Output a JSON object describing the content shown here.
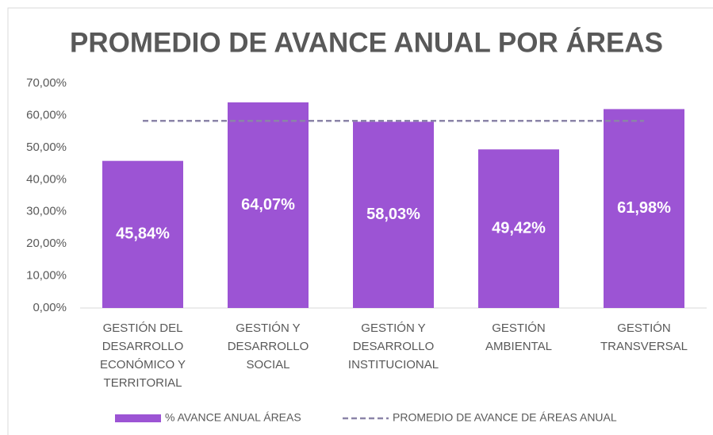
{
  "chart_data": {
    "type": "bar",
    "title": "PROMEDIO DE AVANCE ANUAL POR ÁREAS",
    "categories": [
      "GESTIÓN DEL DESARROLLO ECONÓMICO Y TERRITORIAL",
      "GESTIÓN Y DESARROLLO SOCIAL",
      "GESTIÓN Y DESARROLLO INSTITUCIONAL",
      "GESTIÓN AMBIENTAL",
      "GESTIÓN TRANSVERSAL"
    ],
    "series": [
      {
        "name": "% AVANCE ANUAL ÁREAS",
        "type": "bar",
        "color": "#9c54d4",
        "values": [
          45.84,
          64.07,
          58.03,
          49.42,
          61.98
        ],
        "value_labels": [
          "45,84%",
          "64,07%",
          "58,03%",
          "49,42%",
          "61,98%"
        ]
      },
      {
        "name": "PROMEDIO DE AVANCE DE ÁREAS ANUAL",
        "type": "line",
        "color": "#8b84a8",
        "values": [
          58.3,
          58.3,
          58.3,
          58.3,
          58.3
        ]
      }
    ],
    "ylim": [
      0,
      70
    ],
    "yticks": [
      {
        "value": 0,
        "label": "0,00%"
      },
      {
        "value": 10,
        "label": "10,00%"
      },
      {
        "value": 20,
        "label": "20,00%"
      },
      {
        "value": 30,
        "label": "30,00%"
      },
      {
        "value": 40,
        "label": "40,00%"
      },
      {
        "value": 50,
        "label": "50,00%"
      },
      {
        "value": 60,
        "label": "60,00%"
      },
      {
        "value": 70,
        "label": "70,00%"
      }
    ],
    "grid": false,
    "legend": "bottom"
  }
}
